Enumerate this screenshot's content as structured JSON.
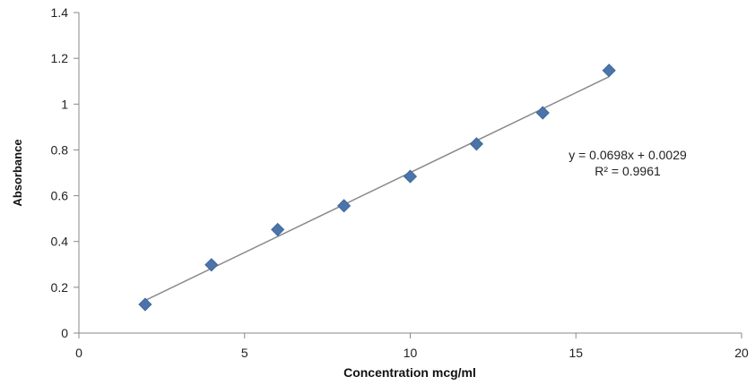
{
  "chart_data": {
    "type": "scatter",
    "title": "",
    "xlabel": "Concentration mcg/ml",
    "ylabel": "Absorbance",
    "xlim": [
      0,
      20
    ],
    "ylim": [
      0,
      1.4
    ],
    "xticks": [
      0,
      5,
      10,
      15,
      20
    ],
    "xtick_labels": [
      "0",
      "5",
      "10",
      "15",
      "20"
    ],
    "yticks": [
      0,
      0.2,
      0.4,
      0.6,
      0.8,
      1,
      1.2,
      1.4
    ],
    "ytick_labels": [
      "0",
      "0.2",
      "0.4",
      "0.6",
      "0.8",
      "1",
      "1.2",
      "1.4"
    ],
    "grid": false,
    "legend": "none",
    "series": [
      {
        "x": [
          2,
          4,
          6,
          8,
          10,
          12,
          14,
          16
        ],
        "y": [
          0.125,
          0.298,
          0.452,
          0.556,
          0.684,
          0.826,
          0.962,
          1.147
        ],
        "marker": "diamond",
        "color": "#4a74aa"
      }
    ],
    "trendline": {
      "type": "linear",
      "slope": 0.0698,
      "intercept": 0.0029,
      "x_range": [
        2,
        16
      ],
      "color": "#8a8a8a"
    },
    "annotations": [
      "y = 0.0698x + 0.0029",
      "R² = 0.9961"
    ],
    "axis_color": "#888888"
  }
}
